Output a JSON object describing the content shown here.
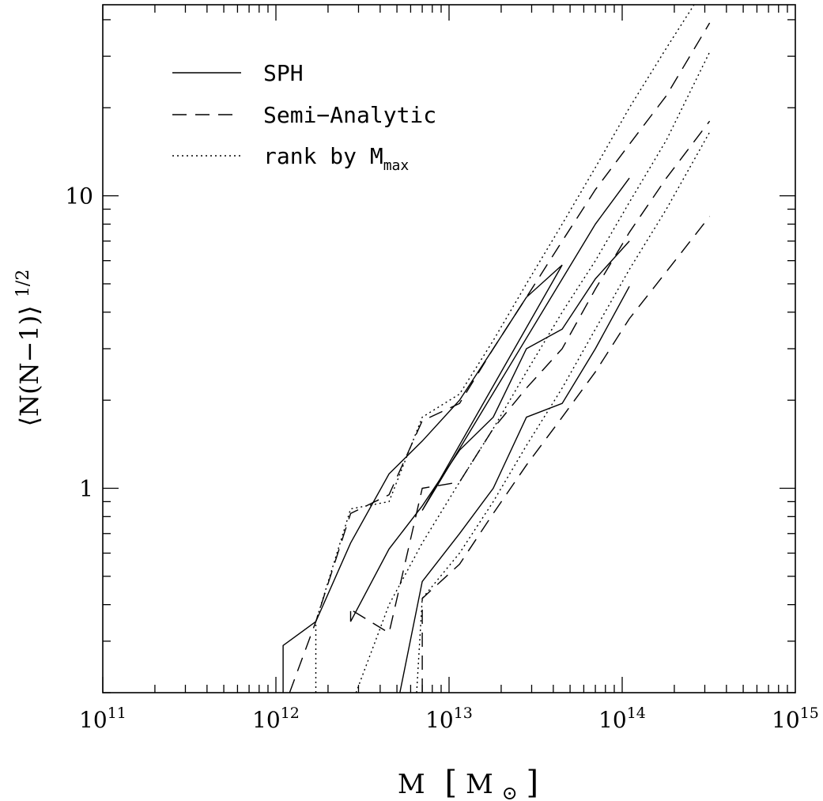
{
  "chart_data": {
    "type": "line",
    "title": "",
    "xlabel_main": "M",
    "xlabel_unit_open": "[",
    "xlabel_unit_sym": "M",
    "xlabel_unit_sub": "⊙",
    "xlabel_unit_close": "]",
    "ylabel_main": "⟨N(N−1)⟩",
    "ylabel_sup": "1/2",
    "x_scale": "log",
    "y_scale": "log",
    "xlim": [
      100000000000.0,
      1000000000000000.0
    ],
    "ylim": [
      0.2,
      45
    ],
    "x_ticks": [
      {
        "base": "10",
        "exp": "11",
        "value": 100000000000.0
      },
      {
        "base": "10",
        "exp": "12",
        "value": 1000000000000.0
      },
      {
        "base": "10",
        "exp": "13",
        "value": 10000000000000.0
      },
      {
        "base": "10",
        "exp": "14",
        "value": 100000000000000.0
      },
      {
        "base": "10",
        "exp": "15",
        "value": 1000000000000000.0
      }
    ],
    "y_ticks": [
      {
        "label": "1",
        "value": 1
      },
      {
        "label": "10",
        "value": 10
      }
    ],
    "grid": false,
    "legend": {
      "position": "top-left",
      "entries": [
        {
          "label": "SPH",
          "style": "solid",
          "sub": ""
        },
        {
          "label": "Semi−Analytic",
          "style": "dashed",
          "sub": ""
        },
        {
          "label": "rank by M",
          "style": "dotted",
          "sub": "max"
        }
      ]
    },
    "series": [
      {
        "style": "solid",
        "points": [
          [
            1100000000000.0,
            0.2
          ],
          [
            1100000000000.0,
            0.29
          ],
          [
            1700000000000.0,
            0.35
          ],
          [
            2700000000000.0,
            0.65
          ],
          [
            4500000000000.0,
            1.12
          ],
          [
            7000000000000.0,
            1.45
          ],
          [
            11500000000000.0,
            2.0
          ],
          [
            18000000000000.0,
            3.0
          ],
          [
            28000000000000.0,
            4.5
          ],
          [
            45000000000000.0,
            5.8
          ],
          [
            7000000000000.0,
            0.84
          ],
          [
            70000000000000.0,
            8.0
          ],
          [
            110000000000000.0,
            11.5
          ]
        ]
      },
      {
        "style": "solid",
        "points": [
          [
            2700000000000.0,
            0.38
          ],
          [
            2700000000000.0,
            0.35
          ],
          [
            4500000000000.0,
            0.62
          ],
          [
            7000000000000.0,
            0.87
          ],
          [
            11500000000000.0,
            1.35
          ],
          [
            18000000000000.0,
            1.75
          ],
          [
            28000000000000.0,
            3.0
          ],
          [
            45000000000000.0,
            3.5
          ],
          [
            70000000000000.0,
            5.2
          ],
          [
            110000000000000.0,
            7.0
          ]
        ]
      },
      {
        "style": "solid",
        "points": [
          [
            5200000000000.0,
            0.2
          ],
          [
            7000000000000.0,
            0.48
          ],
          [
            11500000000000.0,
            0.7
          ],
          [
            18000000000000.0,
            1.0
          ],
          [
            28000000000000.0,
            1.75
          ],
          [
            45000000000000.0,
            1.95
          ],
          [
            70000000000000.0,
            3.0
          ],
          [
            110000000000000.0,
            4.9
          ]
        ]
      },
      {
        "style": "dashed",
        "points": [
          [
            1200000000000.0,
            0.2
          ],
          [
            1700000000000.0,
            0.35
          ],
          [
            2700000000000.0,
            0.82
          ],
          [
            4500000000000.0,
            0.95
          ],
          [
            7000000000000.0,
            1.7
          ],
          [
            11500000000000.0,
            1.95
          ],
          [
            18000000000000.0,
            3.0
          ],
          [
            28000000000000.0,
            4.5
          ],
          [
            45000000000000.0,
            7.0
          ],
          [
            70000000000000.0,
            10.5
          ],
          [
            110000000000000.0,
            15.0
          ],
          [
            180000000000000.0,
            22.0
          ],
          [
            320000000000000.0,
            39.0
          ]
        ]
      },
      {
        "style": "dashed",
        "points": [
          [
            2800000000000.0,
            0.38
          ],
          [
            4500000000000.0,
            0.32
          ],
          [
            7000000000000.0,
            1.0
          ],
          [
            11500000000000.0,
            1.05
          ],
          [
            18000000000000.0,
            1.6
          ],
          [
            28000000000000.0,
            2.2
          ],
          [
            45000000000000.0,
            3.0
          ],
          [
            70000000000000.0,
            4.8
          ],
          [
            110000000000000.0,
            7.5
          ],
          [
            180000000000000.0,
            11.5
          ],
          [
            320000000000000.0,
            18.0
          ]
        ]
      },
      {
        "style": "dashed",
        "points": [
          [
            7000000000000.0,
            0.2
          ],
          [
            7000000000000.0,
            0.42
          ],
          [
            11500000000000.0,
            0.55
          ],
          [
            18000000000000.0,
            0.82
          ],
          [
            28000000000000.0,
            1.2
          ],
          [
            45000000000000.0,
            1.75
          ],
          [
            70000000000000.0,
            2.5
          ],
          [
            110000000000000.0,
            3.8
          ],
          [
            180000000000000.0,
            5.5
          ],
          [
            320000000000000.0,
            8.5
          ]
        ]
      },
      {
        "style": "dotted",
        "points": [
          [
            1700000000000.0,
            0.2
          ],
          [
            1700000000000.0,
            0.35
          ],
          [
            2700000000000.0,
            0.85
          ],
          [
            4500000000000.0,
            0.9
          ],
          [
            7000000000000.0,
            1.75
          ],
          [
            11500000000000.0,
            2.1
          ],
          [
            18000000000000.0,
            3.2
          ],
          [
            28000000000000.0,
            5.0
          ],
          [
            45000000000000.0,
            8.0
          ],
          [
            70000000000000.0,
            12.5
          ],
          [
            110000000000000.0,
            20.0
          ],
          [
            180000000000000.0,
            32.0
          ],
          [
            260000000000000.0,
            45.0
          ]
        ]
      },
      {
        "style": "dotted",
        "points": [
          [
            2900000000000.0,
            0.2
          ],
          [
            4500000000000.0,
            0.4
          ],
          [
            7000000000000.0,
            0.65
          ],
          [
            11500000000000.0,
            1.05
          ],
          [
            18000000000000.0,
            1.6
          ],
          [
            28000000000000.0,
            2.5
          ],
          [
            45000000000000.0,
            4.0
          ],
          [
            70000000000000.0,
            6.0
          ],
          [
            110000000000000.0,
            9.5
          ],
          [
            180000000000000.0,
            15.5
          ],
          [
            320000000000000.0,
            31.0
          ]
        ]
      },
      {
        "style": "dotted",
        "points": [
          [
            6500000000000.0,
            0.2
          ],
          [
            7000000000000.0,
            0.42
          ],
          [
            11500000000000.0,
            0.6
          ],
          [
            18000000000000.0,
            0.9
          ],
          [
            28000000000000.0,
            1.4
          ],
          [
            45000000000000.0,
            2.2
          ],
          [
            70000000000000.0,
            3.5
          ],
          [
            110000000000000.0,
            5.6
          ],
          [
            180000000000000.0,
            9.0
          ],
          [
            320000000000000.0,
            16.5
          ]
        ]
      }
    ]
  }
}
